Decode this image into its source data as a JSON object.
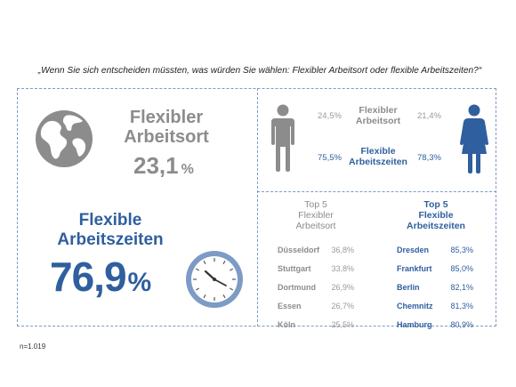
{
  "question": "„Wenn Sie sich entscheiden müssten, was würden Sie wählen: Flexibler Arbeitsort oder flexible Arbeitszeiten?“",
  "footnote": "n=1.019",
  "left_panel": {
    "ort_label_1": "Flexibler",
    "ort_label_2": "Arbeitsort",
    "ort_value": "23,1",
    "ort_unit": "%",
    "zeit_label_1": "Flexible",
    "zeit_label_2": "Arbeitszeiten",
    "zeit_value": "76,9",
    "zeit_unit": "%"
  },
  "gender_panel": {
    "ort_label_1": "Flexibler",
    "ort_label_2": "Arbeitsort",
    "zeit_label_1": "Flexible",
    "zeit_label_2": "Arbeitszeiten",
    "male_ort": "24,5%",
    "female_ort": "21,4%",
    "male_zeit": "75,5%",
    "female_zeit": "78,3%"
  },
  "top5_panel": {
    "ort_head_1": "Top 5",
    "ort_head_2": "Flexibler",
    "ort_head_3": "Arbeitsort",
    "zeit_head_1": "Top 5",
    "zeit_head_2": "Flexible",
    "zeit_head_3": "Arbeitszeiten",
    "ort_cities": [
      {
        "city": "Düsseldorf",
        "value": "36,8%"
      },
      {
        "city": "Stuttgart",
        "value": "33,8%"
      },
      {
        "city": "Dortmund",
        "value": "26,9%"
      },
      {
        "city": "Essen",
        "value": "26,7%"
      },
      {
        "city": "Köln",
        "value": "25,5%"
      }
    ],
    "zeit_cities": [
      {
        "city": "Dresden",
        "value": "85,3%"
      },
      {
        "city": "Frankfurt",
        "value": "85,0%"
      },
      {
        "city": "Berlin",
        "value": "82,1%"
      },
      {
        "city": "Chemnitz",
        "value": "81,3%"
      },
      {
        "city": "Hamburg",
        "value": "80,9%"
      }
    ]
  },
  "colors": {
    "blue": "#2f5f9e",
    "grey": "#8c8c8c",
    "border": "#7d9bc4"
  },
  "chart_data": {
    "type": "table",
    "title": "„Wenn Sie sich entscheiden müssten, was würden Sie wählen: Flexibler Arbeitsort oder flexible Arbeitszeiten?“",
    "overall": [
      {
        "option": "Flexibler Arbeitsort",
        "value": 23.1
      },
      {
        "option": "Flexible Arbeitszeiten",
        "value": 76.9
      }
    ],
    "by_gender": {
      "categories": [
        "Flexibler Arbeitsort",
        "Flexible Arbeitszeiten"
      ],
      "series": [
        {
          "name": "male-icon",
          "values": [
            24.5,
            75.5
          ]
        },
        {
          "name": "female-icon",
          "values": [
            21.4,
            78.3
          ]
        }
      ]
    },
    "top5_flexibler_arbeitsort": {
      "categories": [
        "Düsseldorf",
        "Stuttgart",
        "Dortmund",
        "Essen",
        "Köln"
      ],
      "values": [
        36.8,
        33.8,
        26.9,
        26.7,
        25.5
      ]
    },
    "top5_flexible_arbeitszeiten": {
      "categories": [
        "Dresden",
        "Frankfurt",
        "Berlin",
        "Chemnitz",
        "Hamburg"
      ],
      "values": [
        85.3,
        85.0,
        82.1,
        81.3,
        80.9
      ]
    },
    "unit": "%",
    "n": "n=1.019"
  }
}
